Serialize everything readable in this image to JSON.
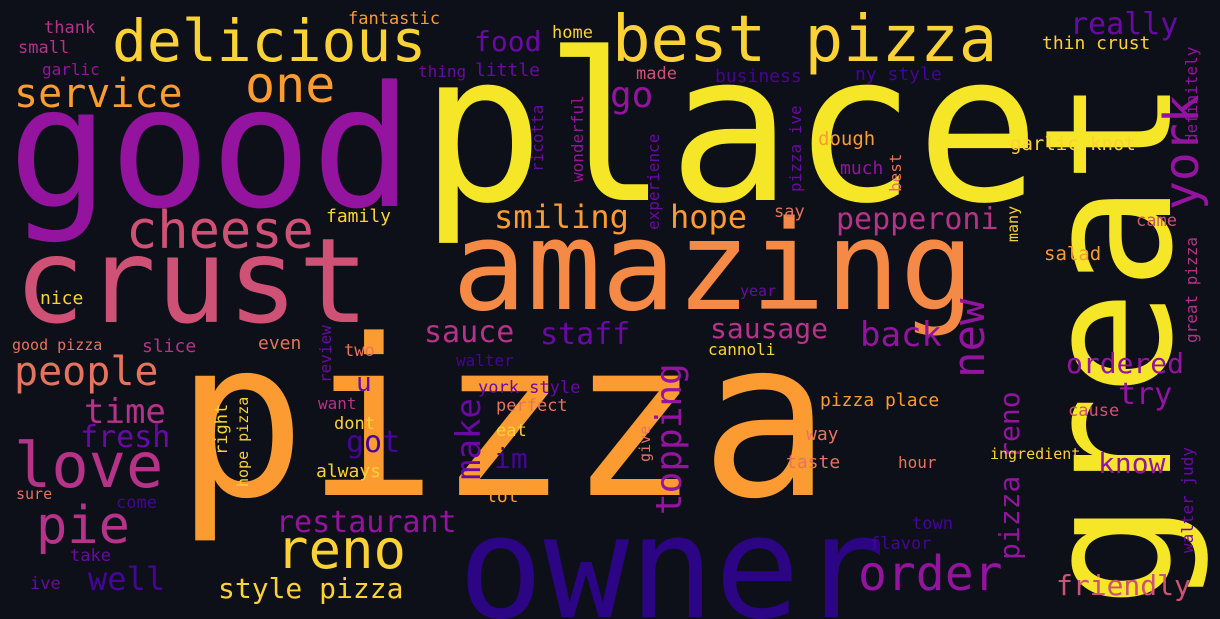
{
  "word_cloud": {
    "background": "#0d1018",
    "palette": [
      "#f5e627",
      "#fbd236",
      "#fb9b32",
      "#f58a47",
      "#e6745c",
      "#cf5276",
      "#b53388",
      "#9414a0",
      "#6a0aa4",
      "#460597",
      "#2c0584"
    ],
    "words": {
      "pizza": "pizza",
      "place": "place",
      "good": "good",
      "great": "great",
      "owner": "owner",
      "amazing": "amazing",
      "crust": "crust",
      "best_pizza": "best pizza",
      "delicious": "delicious",
      "cheese": "cheese",
      "love": "love",
      "reno": "reno",
      "order": "order",
      "new": "new",
      "york": "york",
      "one": "one",
      "service": "service",
      "people": "people",
      "pie": "pie",
      "time": "time",
      "fresh": "fresh",
      "well": "well",
      "style_pizza": "style pizza",
      "restaurant": "restaurant",
      "smiling": "smiling",
      "hope": "hope",
      "pepperoni": "pepperoni",
      "sauce": "sauce",
      "staff": "staff",
      "sausage": "sausage",
      "back": "back",
      "go": "go",
      "food": "food",
      "really": "really",
      "topping": "topping",
      "make": "make",
      "got": "got",
      "im": "im",
      "pizza_reno": "pizza reno",
      "ordered": "ordered",
      "try": "try",
      "know": "know",
      "friendly": "friendly",
      "walter_judy": "walter judy",
      "great_pizza": "great pizza",
      "definitely": "definitely",
      "garlic_knot": "garlic knot",
      "thin_crust": "thin crust",
      "ny_style": "ny style",
      "business": "business",
      "made": "made",
      "little": "little",
      "thing": "thing",
      "home": "home",
      "fantastic": "fantastic",
      "thank": "thank",
      "small": "small",
      "garlic": "garlic",
      "family": "family",
      "nice": "nice",
      "good_pizza": "good pizza",
      "slice": "slice",
      "even": "even",
      "two": "two",
      "cannoli": "cannoli",
      "walter": "walter",
      "york_style": "york style",
      "perfect": "perfect",
      "eat": "eat",
      "want": "want",
      "dont": "dont",
      "always": "always",
      "right": "right",
      "hope_pizza": "hope pizza",
      "review": "review",
      "u": "u",
      "lot": "lot",
      "give": "give",
      "pizza_place": "pizza place",
      "way": "way",
      "taste": "taste",
      "hour": "hour",
      "ingredient": "ingredient",
      "cause": "cause",
      "town": "town",
      "flavor": "flavor",
      "sure": "sure",
      "come": "come",
      "take": "take",
      "ive": "ive",
      "dough": "dough",
      "much": "much",
      "best": "best",
      "say": "say",
      "year": "year",
      "salad": "salad",
      "came": "came",
      "many": "many",
      "ricotta": "ricotta",
      "wonderful": "wonderful",
      "experience": "experience",
      "pizza_ive": "pizza ive"
    }
  }
}
